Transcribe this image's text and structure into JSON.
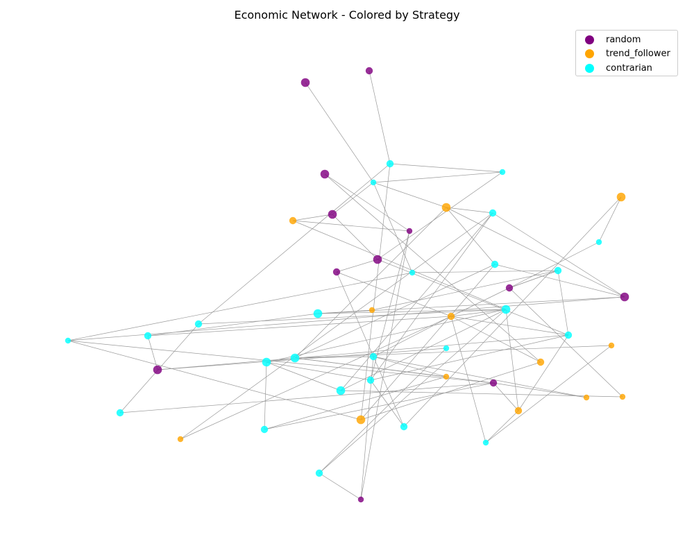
{
  "title": "Economic Network - Colored by Strategy",
  "legend": [
    {
      "label": "random",
      "color": "#800080"
    },
    {
      "label": "trend_follower",
      "color": "#FFA500"
    },
    {
      "label": "contrarian",
      "color": "#00FFFF"
    }
  ],
  "edge_color": "#999999",
  "nodes": [
    {
      "id": "n1",
      "strategy": "random",
      "size": "large"
    },
    {
      "id": "n2",
      "strategy": "random",
      "size": "medium"
    },
    {
      "id": "n3",
      "strategy": "random",
      "size": "large"
    },
    {
      "id": "n4",
      "strategy": "random",
      "size": "large"
    },
    {
      "id": "n5",
      "strategy": "random",
      "size": "small"
    },
    {
      "id": "n6",
      "strategy": "random",
      "size": "large"
    },
    {
      "id": "n7",
      "strategy": "random",
      "size": "medium"
    },
    {
      "id": "n8",
      "strategy": "random",
      "size": "medium"
    },
    {
      "id": "n9",
      "strategy": "random",
      "size": "large"
    },
    {
      "id": "n10",
      "strategy": "random",
      "size": "large"
    },
    {
      "id": "n11",
      "strategy": "random",
      "size": "medium"
    },
    {
      "id": "n12",
      "strategy": "random",
      "size": "small"
    },
    {
      "id": "n13",
      "strategy": "contrarian",
      "size": "small"
    },
    {
      "id": "n14",
      "strategy": "contrarian",
      "size": "medium"
    },
    {
      "id": "n15",
      "strategy": "contrarian",
      "size": "small"
    },
    {
      "id": "n16",
      "strategy": "trend_follower",
      "size": "large"
    },
    {
      "id": "n17",
      "strategy": "contrarian",
      "size": "medium"
    },
    {
      "id": "n18",
      "strategy": "trend_follower",
      "size": "medium"
    },
    {
      "id": "n19",
      "strategy": "trend_follower",
      "size": "large"
    },
    {
      "id": "n20",
      "strategy": "contrarian",
      "size": "small"
    },
    {
      "id": "n21",
      "strategy": "contrarian",
      "size": "medium"
    },
    {
      "id": "n22",
      "strategy": "contrarian",
      "size": "small"
    },
    {
      "id": "n23",
      "strategy": "contrarian",
      "size": "medium"
    },
    {
      "id": "n24",
      "strategy": "trend_follower",
      "size": "medium"
    },
    {
      "id": "n25",
      "strategy": "contrarian",
      "size": "large"
    },
    {
      "id": "n26",
      "strategy": "contrarian",
      "size": "medium"
    },
    {
      "id": "n27",
      "strategy": "trend_follower",
      "size": "small"
    },
    {
      "id": "n28",
      "strategy": "contrarian",
      "size": "large"
    },
    {
      "id": "n29",
      "strategy": "contrarian",
      "size": "medium"
    },
    {
      "id": "n30",
      "strategy": "contrarian",
      "size": "small"
    },
    {
      "id": "n31",
      "strategy": "contrarian",
      "size": "medium"
    },
    {
      "id": "n32",
      "strategy": "contrarian",
      "size": "small"
    },
    {
      "id": "n33",
      "strategy": "trend_follower",
      "size": "small"
    },
    {
      "id": "n34",
      "strategy": "contrarian",
      "size": "large"
    },
    {
      "id": "n35",
      "strategy": "contrarian",
      "size": "large"
    },
    {
      "id": "n36",
      "strategy": "contrarian",
      "size": "medium"
    },
    {
      "id": "n37",
      "strategy": "trend_follower",
      "size": "medium"
    },
    {
      "id": "n38",
      "strategy": "contrarian",
      "size": "medium"
    },
    {
      "id": "n39",
      "strategy": "trend_follower",
      "size": "small"
    },
    {
      "id": "n40",
      "strategy": "trend_follower",
      "size": "small"
    },
    {
      "id": "n41",
      "strategy": "contrarian",
      "size": "large"
    },
    {
      "id": "n42",
      "strategy": "contrarian",
      "size": "medium"
    },
    {
      "id": "n43",
      "strategy": "trend_follower",
      "size": "medium"
    },
    {
      "id": "n44",
      "strategy": "contrarian",
      "size": "medium"
    },
    {
      "id": "n45",
      "strategy": "contrarian",
      "size": "medium"
    },
    {
      "id": "n46",
      "strategy": "trend_follower",
      "size": "large"
    },
    {
      "id": "n47",
      "strategy": "contrarian",
      "size": "small"
    },
    {
      "id": "n48",
      "strategy": "contrarian",
      "size": "medium"
    },
    {
      "id": "n49",
      "strategy": "trend_follower",
      "size": "small"
    },
    {
      "id": "n50",
      "strategy": "trend_follower",
      "size": "small"
    }
  ],
  "edges": [
    [
      "n1",
      "n13"
    ],
    [
      "n2",
      "n14"
    ],
    [
      "n3",
      "n5"
    ],
    [
      "n3",
      "n37"
    ],
    [
      "n4",
      "n13"
    ],
    [
      "n4",
      "n6"
    ],
    [
      "n4",
      "n18"
    ],
    [
      "n6",
      "n31"
    ],
    [
      "n7",
      "n6"
    ],
    [
      "n7",
      "n44"
    ],
    [
      "n8",
      "n23"
    ],
    [
      "n8",
      "n49"
    ],
    [
      "n9",
      "n21"
    ],
    [
      "n10",
      "n32"
    ],
    [
      "n10",
      "n31"
    ],
    [
      "n11",
      "n30"
    ],
    [
      "n11",
      "n45"
    ],
    [
      "n11",
      "n35"
    ],
    [
      "n12",
      "n36"
    ],
    [
      "n12",
      "n48"
    ],
    [
      "n13",
      "n15"
    ],
    [
      "n13",
      "n16"
    ],
    [
      "n13",
      "n22"
    ],
    [
      "n14",
      "n15"
    ],
    [
      "n14",
      "n46"
    ],
    [
      "n15",
      "n6"
    ],
    [
      "n16",
      "n17"
    ],
    [
      "n16",
      "n9"
    ],
    [
      "n16",
      "n35"
    ],
    [
      "n17",
      "n9"
    ],
    [
      "n17",
      "n38"
    ],
    [
      "n18",
      "n5"
    ],
    [
      "n18",
      "n28"
    ],
    [
      "n19",
      "n20"
    ],
    [
      "n19",
      "n44"
    ],
    [
      "n20",
      "n8"
    ],
    [
      "n21",
      "n35"
    ],
    [
      "n22",
      "n30"
    ],
    [
      "n22",
      "n23"
    ],
    [
      "n23",
      "n8"
    ],
    [
      "n24",
      "n8"
    ],
    [
      "n24",
      "n28"
    ],
    [
      "n24",
      "n47"
    ],
    [
      "n24",
      "n50"
    ],
    [
      "n24",
      "n31"
    ],
    [
      "n24",
      "n37"
    ],
    [
      "n24",
      "n36"
    ],
    [
      "n25",
      "n28"
    ],
    [
      "n25",
      "n9"
    ],
    [
      "n25",
      "n29"
    ],
    [
      "n26",
      "n14"
    ],
    [
      "n26",
      "n42"
    ],
    [
      "n27",
      "n23"
    ],
    [
      "n27",
      "n25"
    ],
    [
      "n28",
      "n43"
    ],
    [
      "n28",
      "n41"
    ],
    [
      "n28",
      "n26"
    ],
    [
      "n28",
      "n34"
    ],
    [
      "n29",
      "n10"
    ],
    [
      "n30",
      "n9"
    ],
    [
      "n30",
      "n46"
    ],
    [
      "n31",
      "n23"
    ],
    [
      "n31",
      "n38"
    ],
    [
      "n31",
      "n43"
    ],
    [
      "n32",
      "n48"
    ],
    [
      "n33",
      "n35"
    ],
    [
      "n34",
      "n35"
    ],
    [
      "n34",
      "n41"
    ],
    [
      "n34",
      "n38"
    ],
    [
      "n34",
      "n45"
    ],
    [
      "n35",
      "n36"
    ],
    [
      "n35",
      "n39"
    ],
    [
      "n36",
      "n40"
    ],
    [
      "n36",
      "n39"
    ],
    [
      "n37",
      "n46"
    ],
    [
      "n38",
      "n44"
    ],
    [
      "n39",
      "n45"
    ],
    [
      "n40",
      "n11"
    ],
    [
      "n41",
      "n49"
    ],
    [
      "n41",
      "n17"
    ],
    [
      "n42",
      "n11"
    ],
    [
      "n43",
      "n47"
    ],
    [
      "n43",
      "n11"
    ],
    [
      "n5",
      "n12"
    ],
    [
      "n5",
      "n38"
    ],
    [
      "n7",
      "n24"
    ],
    [
      "n17",
      "n50"
    ],
    [
      "n16",
      "n21"
    ],
    [
      "n21",
      "n46"
    ],
    [
      "n24",
      "n29"
    ],
    [
      "n28",
      "n48"
    ],
    [
      "n33",
      "n47"
    ]
  ]
}
